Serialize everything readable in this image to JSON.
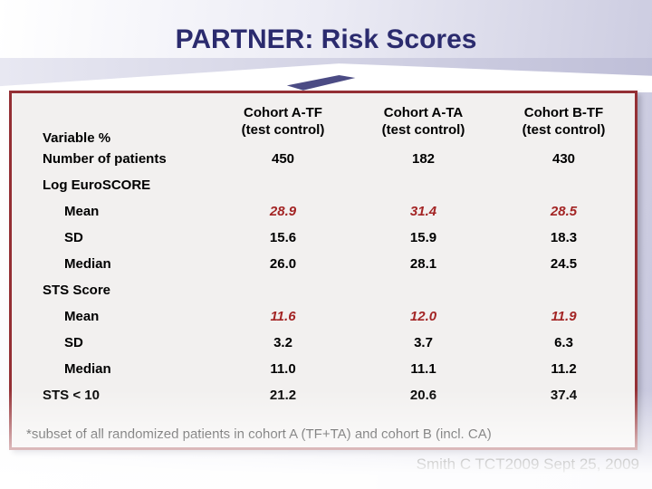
{
  "slide": {
    "title": "PARTNER: Risk Scores",
    "credit": "Smith C TCT2009 Sept 25, 2009"
  },
  "table": {
    "corner_label": "Variable %",
    "columns": [
      {
        "name": "Cohort A-TF",
        "sub": "(test control)"
      },
      {
        "name": "Cohort A-TA",
        "sub": "(test control)"
      },
      {
        "name": "Cohort B-TF",
        "sub": "(test control)"
      }
    ],
    "rows": [
      {
        "label": "Number of patients",
        "indent": 0,
        "emphasis": false,
        "values": [
          "450",
          "182",
          "430"
        ]
      },
      {
        "label": "Log EuroSCORE",
        "indent": 0,
        "emphasis": false,
        "values": [
          "",
          "",
          ""
        ]
      },
      {
        "label": "Mean",
        "indent": 1,
        "emphasis": true,
        "values": [
          "28.9",
          "31.4",
          "28.5"
        ]
      },
      {
        "label": "SD",
        "indent": 1,
        "emphasis": false,
        "values": [
          "15.6",
          "15.9",
          "18.3"
        ]
      },
      {
        "label": "Median",
        "indent": 1,
        "emphasis": false,
        "values": [
          "26.0",
          "28.1",
          "24.5"
        ]
      },
      {
        "label": "STS Score",
        "indent": 0,
        "emphasis": false,
        "values": [
          "",
          "",
          ""
        ]
      },
      {
        "label": "Mean",
        "indent": 1,
        "emphasis": true,
        "values": [
          "11.6",
          "12.0",
          "11.9"
        ]
      },
      {
        "label": "SD",
        "indent": 1,
        "emphasis": false,
        "values": [
          "3.2",
          "3.7",
          "6.3"
        ]
      },
      {
        "label": "Median",
        "indent": 1,
        "emphasis": false,
        "values": [
          "11.0",
          "11.1",
          "11.2"
        ]
      },
      {
        "label": "STS < 10",
        "indent": 0,
        "emphasis": false,
        "values": [
          "21.2",
          "20.6",
          "37.4"
        ]
      }
    ],
    "footnote": "*subset of all randomized patients in cohort A (TF+TA) and cohort B (incl. CA)"
  },
  "colors": {
    "title_color": "#2b2b6e",
    "emphasis_color": "#a32424",
    "panel_border": "#942f34",
    "panel_bg": "#f2f0ef"
  }
}
